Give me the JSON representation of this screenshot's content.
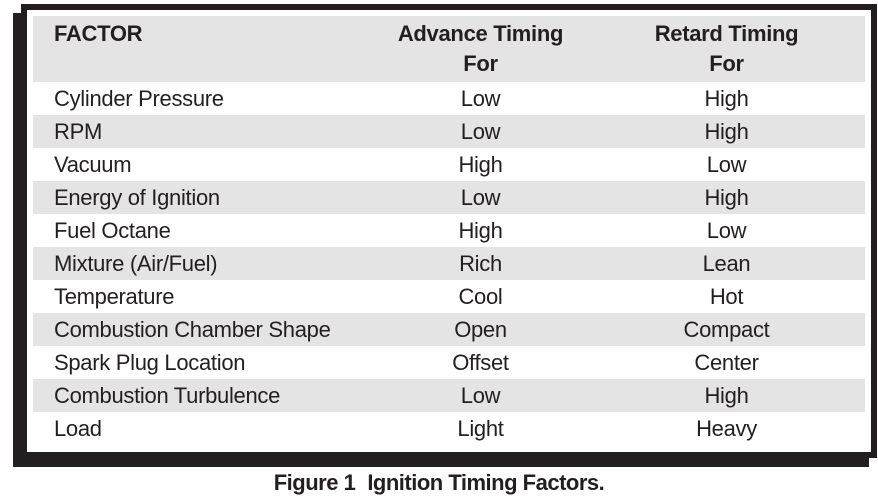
{
  "colors": {
    "ink": "#231f20",
    "stripe": "#e4e4e4",
    "paper": "#ffffff"
  },
  "table": {
    "columns": [
      {
        "label": "FACTOR",
        "sub": ""
      },
      {
        "label": "Advance Timing",
        "sub": "For"
      },
      {
        "label": "Retard Timing",
        "sub": "For"
      }
    ],
    "rows": [
      {
        "factor": "Cylinder Pressure",
        "advance": "Low",
        "retard": "High"
      },
      {
        "factor": "RPM",
        "advance": "Low",
        "retard": "High"
      },
      {
        "factor": "Vacuum",
        "advance": "High",
        "retard": "Low"
      },
      {
        "factor": "Energy of Ignition",
        "advance": "Low",
        "retard": "High"
      },
      {
        "factor": "Fuel Octane",
        "advance": "High",
        "retard": "Low"
      },
      {
        "factor": "Mixture (Air/Fuel)",
        "advance": "Rich",
        "retard": "Lean"
      },
      {
        "factor": "Temperature",
        "advance": "Cool",
        "retard": "Hot"
      },
      {
        "factor": "Combustion Chamber Shape",
        "advance": "Open",
        "retard": "Compact"
      },
      {
        "factor": "Spark Plug Location",
        "advance": "Offset",
        "retard": "Center"
      },
      {
        "factor": "Combustion Turbulence",
        "advance": "Low",
        "retard": "High"
      },
      {
        "factor": "Load",
        "advance": "Light",
        "retard": "Heavy"
      }
    ]
  },
  "caption": {
    "label": "Figure 1",
    "text": "Ignition Timing Factors."
  }
}
